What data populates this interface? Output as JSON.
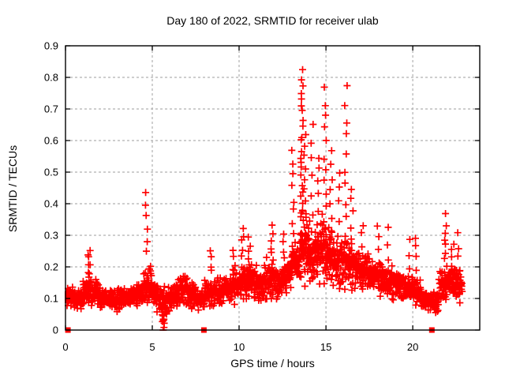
{
  "chart": {
    "title": "Day 180 of 2022, SRMTID for receiver ulab",
    "xlabel": "GPS time / hours",
    "ylabel": "SRMTID / TECUs"
  },
  "chart_data": {
    "type": "scatter",
    "title": "Day 180 of 2022, SRMTID for receiver ulab",
    "xlabel": "GPS time / hours",
    "ylabel": "SRMTID / TECUs",
    "xlim": [
      0,
      23.86
    ],
    "ylim": [
      0,
      0.9
    ],
    "xticks": [
      0,
      5,
      10,
      15,
      20
    ],
    "xtick_labels": [
      "0",
      "5",
      "10",
      "15",
      "20"
    ],
    "yticks": [
      0,
      0.1,
      0.2,
      0.3,
      0.4,
      0.5,
      0.6,
      0.7,
      0.8,
      0.9
    ],
    "ytick_labels": [
      "0",
      "0.1",
      "0.2",
      "0.3",
      "0.4",
      "0.5",
      "0.6",
      "0.7",
      "0.8",
      "0.9"
    ],
    "grid": true,
    "legend": "none",
    "marker": {
      "shape": "plus",
      "color": "#ff0000",
      "size": 9,
      "stroke_width": 1.7
    },
    "colors": {
      "marker": "#ff0000",
      "grid": "#b0b0b0",
      "axis": "#000000",
      "background": "#ffffff"
    },
    "seed": 20220180,
    "bin_format": [
      "x_start",
      "x_end",
      "count",
      "center_tecu",
      "half_range_tecu"
    ],
    "baseline_bins": [
      [
        0.03,
        0.5,
        46,
        0.105,
        0.045
      ],
      [
        0.5,
        1.0,
        44,
        0.1,
        0.04
      ],
      [
        1.0,
        1.5,
        44,
        0.125,
        0.065
      ],
      [
        1.5,
        2.0,
        44,
        0.115,
        0.055
      ],
      [
        2.0,
        2.5,
        44,
        0.1,
        0.04
      ],
      [
        2.5,
        3.0,
        44,
        0.095,
        0.04
      ],
      [
        3.0,
        3.5,
        44,
        0.1,
        0.045
      ],
      [
        3.5,
        4.0,
        44,
        0.105,
        0.045
      ],
      [
        4.0,
        4.5,
        44,
        0.11,
        0.05
      ],
      [
        4.5,
        5.0,
        48,
        0.14,
        0.09
      ],
      [
        5.0,
        5.5,
        44,
        0.11,
        0.055
      ],
      [
        5.5,
        6.0,
        44,
        0.085,
        0.06
      ],
      [
        6.0,
        6.5,
        44,
        0.11,
        0.05
      ],
      [
        6.5,
        7.0,
        44,
        0.13,
        0.06
      ],
      [
        7.0,
        7.5,
        44,
        0.115,
        0.05
      ],
      [
        7.5,
        8.0,
        44,
        0.1,
        0.045
      ],
      [
        8.0,
        8.5,
        44,
        0.115,
        0.055
      ],
      [
        8.5,
        9.0,
        44,
        0.12,
        0.055
      ],
      [
        9.0,
        9.5,
        44,
        0.13,
        0.06
      ],
      [
        9.5,
        10.0,
        44,
        0.14,
        0.065
      ],
      [
        10.0,
        10.5,
        48,
        0.15,
        0.075
      ],
      [
        10.5,
        11.0,
        48,
        0.16,
        0.075
      ],
      [
        11.0,
        11.5,
        48,
        0.15,
        0.07
      ],
      [
        11.5,
        12.0,
        48,
        0.16,
        0.08
      ],
      [
        12.0,
        12.5,
        48,
        0.15,
        0.07
      ],
      [
        12.5,
        13.0,
        48,
        0.17,
        0.08
      ],
      [
        13.0,
        13.5,
        52,
        0.21,
        0.1
      ],
      [
        13.5,
        14.0,
        56,
        0.27,
        0.15
      ],
      [
        14.0,
        14.5,
        52,
        0.24,
        0.12
      ],
      [
        14.5,
        15.0,
        52,
        0.25,
        0.13
      ],
      [
        15.0,
        15.5,
        52,
        0.23,
        0.11
      ],
      [
        15.5,
        16.0,
        48,
        0.21,
        0.1
      ],
      [
        16.0,
        16.5,
        48,
        0.21,
        0.11
      ],
      [
        16.5,
        17.0,
        48,
        0.2,
        0.09
      ],
      [
        17.0,
        17.5,
        48,
        0.19,
        0.08
      ],
      [
        17.5,
        18.0,
        44,
        0.18,
        0.08
      ],
      [
        18.0,
        18.5,
        44,
        0.16,
        0.07
      ],
      [
        18.5,
        19.0,
        44,
        0.15,
        0.065
      ],
      [
        19.0,
        19.5,
        44,
        0.14,
        0.06
      ],
      [
        19.5,
        20.0,
        44,
        0.13,
        0.055
      ],
      [
        20.0,
        20.5,
        44,
        0.12,
        0.055
      ],
      [
        20.5,
        21.0,
        44,
        0.095,
        0.045
      ],
      [
        21.0,
        21.5,
        44,
        0.095,
        0.05
      ],
      [
        21.5,
        22.0,
        44,
        0.14,
        0.08
      ],
      [
        22.0,
        22.5,
        44,
        0.15,
        0.07
      ],
      [
        22.5,
        22.85,
        30,
        0.14,
        0.065
      ]
    ],
    "column_format": [
      "x_hours",
      "y_min_tecu",
      "y_max_tecu",
      "count"
    ],
    "spike_columns": [
      [
        1.35,
        0.15,
        0.26,
        8
      ],
      [
        4.68,
        0.25,
        0.43,
        6
      ],
      [
        5.62,
        0.0,
        0.08,
        12
      ],
      [
        8.35,
        0.18,
        0.25,
        4
      ],
      [
        9.7,
        0.18,
        0.26,
        4
      ],
      [
        10.2,
        0.2,
        0.33,
        6
      ],
      [
        10.6,
        0.2,
        0.3,
        5
      ],
      [
        11.9,
        0.22,
        0.33,
        6
      ],
      [
        12.55,
        0.2,
        0.3,
        5
      ],
      [
        13.1,
        0.3,
        0.56,
        8
      ],
      [
        13.62,
        0.35,
        0.82,
        22
      ],
      [
        13.8,
        0.3,
        0.62,
        10
      ],
      [
        14.2,
        0.25,
        0.66,
        8
      ],
      [
        14.55,
        0.3,
        0.55,
        7
      ],
      [
        14.95,
        0.3,
        0.76,
        12
      ],
      [
        15.3,
        0.28,
        0.56,
        8
      ],
      [
        15.75,
        0.25,
        0.5,
        6
      ],
      [
        16.15,
        0.3,
        0.77,
        10
      ],
      [
        16.5,
        0.25,
        0.45,
        6
      ],
      [
        17.1,
        0.2,
        0.34,
        5
      ],
      [
        18.0,
        0.18,
        0.33,
        5
      ],
      [
        18.6,
        0.16,
        0.32,
        4
      ],
      [
        19.8,
        0.14,
        0.28,
        4
      ],
      [
        20.15,
        0.15,
        0.3,
        5
      ],
      [
        21.9,
        0.15,
        0.36,
        10
      ],
      [
        22.3,
        0.14,
        0.28,
        6
      ],
      [
        22.65,
        0.13,
        0.3,
        6
      ]
    ],
    "zero_markers": {
      "shape": "filled-square",
      "color": "#ff0000",
      "size": 7,
      "x_hours": [
        0.14,
        7.97,
        21.1
      ],
      "y_tecu": [
        0,
        0,
        0
      ]
    }
  }
}
